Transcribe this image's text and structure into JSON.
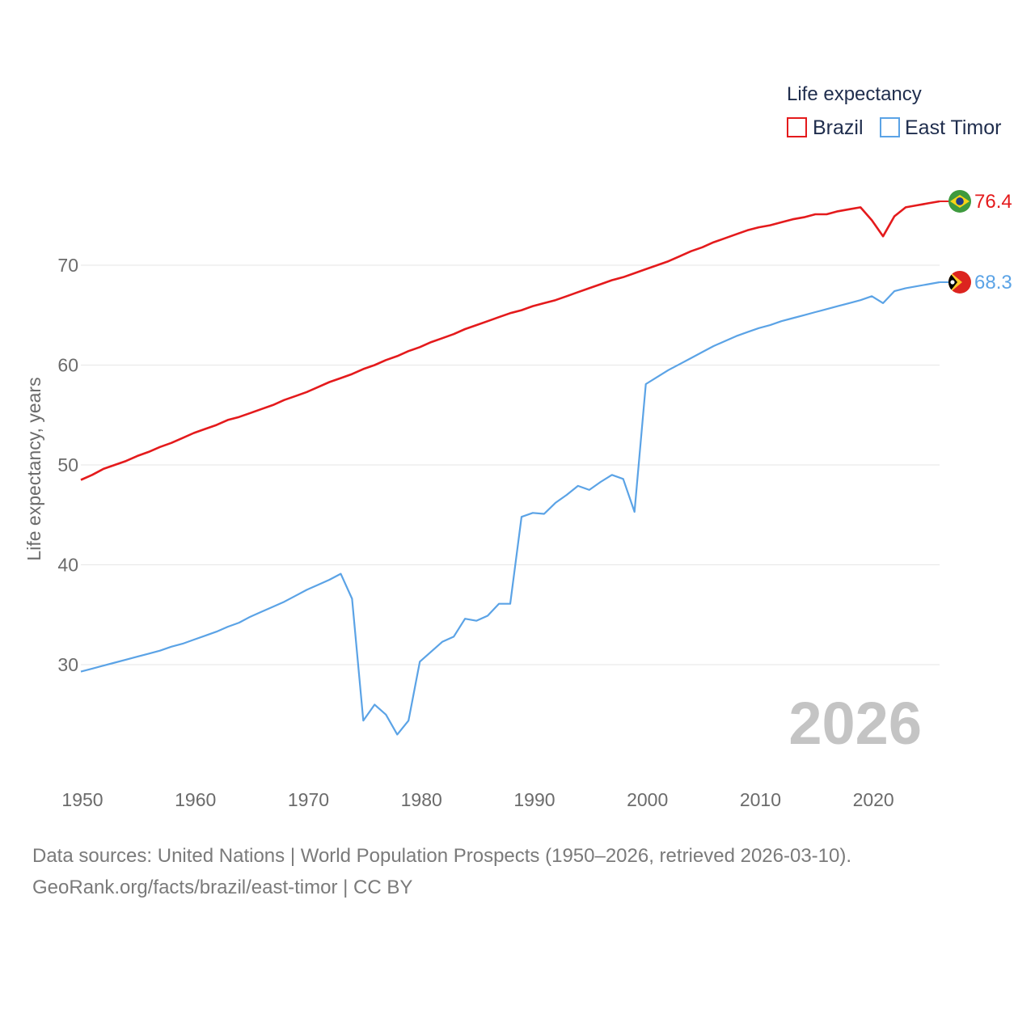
{
  "chart_data": {
    "type": "line",
    "title": "",
    "xlabel": "",
    "ylabel": "Life expectancy, years",
    "xlim": [
      1950,
      2026
    ],
    "ylim": [
      20,
      80
    ],
    "yticks": [
      30,
      40,
      50,
      60,
      70
    ],
    "xticks": [
      1950,
      1960,
      1970,
      1980,
      1990,
      2000,
      2010,
      2020
    ],
    "grid": true,
    "legend_title": "Life expectancy",
    "legend_position": "top-right",
    "year_label": "2026",
    "x": [
      1950,
      1951,
      1952,
      1953,
      1954,
      1955,
      1956,
      1957,
      1958,
      1959,
      1960,
      1961,
      1962,
      1963,
      1964,
      1965,
      1966,
      1967,
      1968,
      1969,
      1970,
      1971,
      1972,
      1973,
      1974,
      1975,
      1976,
      1977,
      1978,
      1979,
      1980,
      1981,
      1982,
      1983,
      1984,
      1985,
      1986,
      1987,
      1988,
      1989,
      1990,
      1991,
      1992,
      1993,
      1994,
      1995,
      1996,
      1997,
      1998,
      1999,
      2000,
      2001,
      2002,
      2003,
      2004,
      2005,
      2006,
      2007,
      2008,
      2009,
      2010,
      2011,
      2012,
      2013,
      2014,
      2015,
      2016,
      2017,
      2018,
      2019,
      2020,
      2021,
      2022,
      2023,
      2024,
      2025,
      2026
    ],
    "series": [
      {
        "name": "Brazil",
        "color": "#e41a1c",
        "end_value": "76.4",
        "flag": "brazil-flag",
        "values": [
          48.5,
          49.0,
          49.6,
          50.0,
          50.4,
          50.9,
          51.3,
          51.8,
          52.2,
          52.7,
          53.2,
          53.6,
          54.0,
          54.5,
          54.8,
          55.2,
          55.6,
          56.0,
          56.5,
          56.9,
          57.3,
          57.8,
          58.3,
          58.7,
          59.1,
          59.6,
          60.0,
          60.5,
          60.9,
          61.4,
          61.8,
          62.3,
          62.7,
          63.1,
          63.6,
          64.0,
          64.4,
          64.8,
          65.2,
          65.5,
          65.9,
          66.2,
          66.5,
          66.9,
          67.3,
          67.7,
          68.1,
          68.5,
          68.8,
          69.2,
          69.6,
          70.0,
          70.4,
          70.9,
          71.4,
          71.8,
          72.3,
          72.7,
          73.1,
          73.5,
          73.8,
          74.0,
          74.3,
          74.6,
          74.8,
          75.1,
          75.1,
          75.4,
          75.6,
          75.8,
          74.5,
          72.9,
          74.9,
          75.8,
          76.0,
          76.2,
          76.4
        ]
      },
      {
        "name": "East Timor",
        "color": "#5ba3e6",
        "end_value": "68.3",
        "flag": "east-timor-flag",
        "values": [
          29.3,
          29.6,
          29.9,
          30.2,
          30.5,
          30.8,
          31.1,
          31.4,
          31.8,
          32.1,
          32.5,
          32.9,
          33.3,
          33.8,
          34.2,
          34.8,
          35.3,
          35.8,
          36.3,
          36.9,
          37.5,
          38.0,
          38.5,
          39.1,
          36.6,
          24.4,
          26.0,
          25.0,
          23.0,
          24.4,
          30.3,
          31.3,
          32.3,
          32.8,
          34.6,
          34.4,
          34.9,
          36.1,
          36.1,
          44.8,
          45.2,
          45.1,
          46.2,
          47.0,
          47.9,
          47.5,
          48.3,
          49.0,
          48.6,
          45.3,
          58.1,
          58.8,
          59.5,
          60.1,
          60.7,
          61.3,
          61.9,
          62.4,
          62.9,
          63.3,
          63.7,
          64.0,
          64.4,
          64.7,
          65.0,
          65.3,
          65.6,
          65.9,
          66.2,
          66.5,
          66.9,
          66.2,
          67.4,
          67.7,
          67.9,
          68.1,
          68.3
        ]
      }
    ]
  },
  "footer": {
    "line1": "Data sources: United Nations | World Population Prospects (1950–2026, retrieved 2026-03-10).",
    "line2": "GeoRank.org/facts/brazil/east-timor | CC BY"
  }
}
